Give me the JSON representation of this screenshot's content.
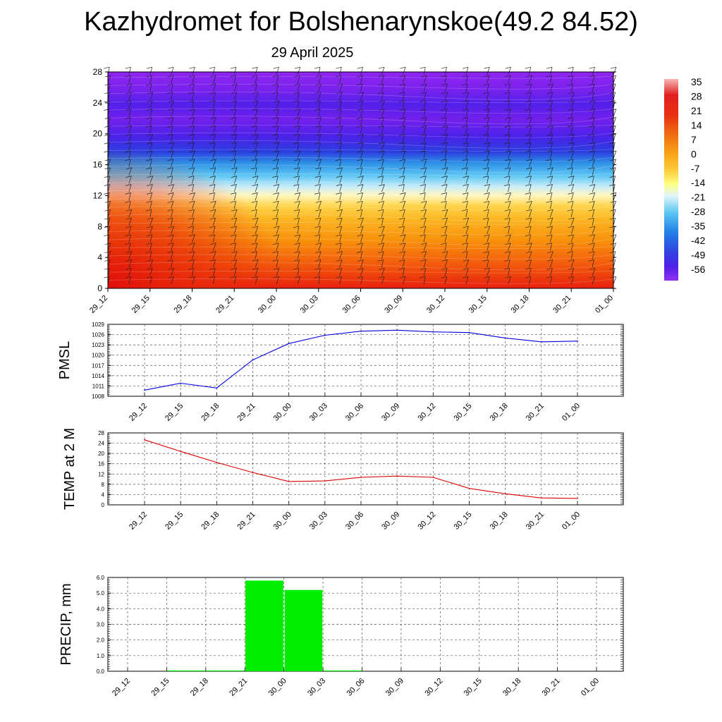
{
  "title": "Kazhydromet for Bolshenarynskoe(49.2 84.52)",
  "date": "29 April 2025",
  "colors": {
    "pmsl_line": "#0000dd",
    "temp_line": "#dd0000",
    "precip_bar": "#00ee00"
  },
  "chart_data": [
    {
      "type": "heatmap",
      "name": "temperature-profile",
      "x": [
        "29_12",
        "29_15",
        "29_18",
        "29_21",
        "30_00",
        "30_03",
        "30_06",
        "30_09",
        "30_12",
        "30_15",
        "30_18",
        "30_21",
        "01_00"
      ],
      "y_ticks": [
        0,
        4,
        8,
        12,
        16,
        20,
        24,
        28
      ],
      "ylim": [
        0,
        28
      ],
      "colorbar_labels": [
        "35",
        "28",
        "21",
        "14",
        "7",
        "0",
        "-7",
        "-14",
        "-21",
        "-28",
        "-35",
        "-42",
        "-49",
        "-56"
      ],
      "wind_barbs": true
    },
    {
      "type": "line",
      "ylabel": "PMSL",
      "x": [
        "29_12",
        "29_15",
        "29_18",
        "29_21",
        "30_00",
        "30_03",
        "30_06",
        "30_09",
        "30_12",
        "30_15",
        "30_18",
        "30_21",
        "01_00"
      ],
      "values": [
        1009.8,
        1011.8,
        1010.4,
        1018.6,
        1023.4,
        1025.8,
        1027.0,
        1027.3,
        1026.8,
        1026.6,
        1025.0,
        1023.9,
        1024.1
      ],
      "y_ticks": [
        1008,
        1011,
        1014,
        1017,
        1020,
        1023,
        1026,
        1029
      ],
      "ylim": [
        1008,
        1029
      ]
    },
    {
      "type": "line",
      "ylabel": "TEMP at 2 M",
      "x": [
        "29_12",
        "29_15",
        "29_18",
        "29_21",
        "30_00",
        "30_03",
        "30_06",
        "30_09",
        "30_12",
        "30_15",
        "30_18",
        "30_21",
        "01_00"
      ],
      "values": [
        25.3,
        20.8,
        16.5,
        12.6,
        9.1,
        9.3,
        10.7,
        11.2,
        10.7,
        6.4,
        4.3,
        2.7,
        2.5
      ],
      "y_ticks": [
        0,
        4,
        8,
        12,
        16,
        20,
        24,
        28
      ],
      "ylim": [
        0,
        28
      ]
    },
    {
      "type": "bar",
      "ylabel": "PRECIP, mm",
      "x": [
        "29_12",
        "29_15",
        "29_18",
        "29_21",
        "30_00",
        "30_03",
        "30_06",
        "30_09",
        "30_12",
        "30_15",
        "30_18",
        "30_21",
        "01_00"
      ],
      "values": [
        0,
        0.05,
        0.05,
        5.8,
        5.2,
        0.05,
        0,
        0,
        0,
        0,
        0,
        0,
        0
      ],
      "y_ticks": [
        "0.0",
        "1.0",
        "2.0",
        "3.0",
        "4.0",
        "5.0",
        "6.0"
      ],
      "ylim": [
        0,
        6
      ]
    }
  ]
}
